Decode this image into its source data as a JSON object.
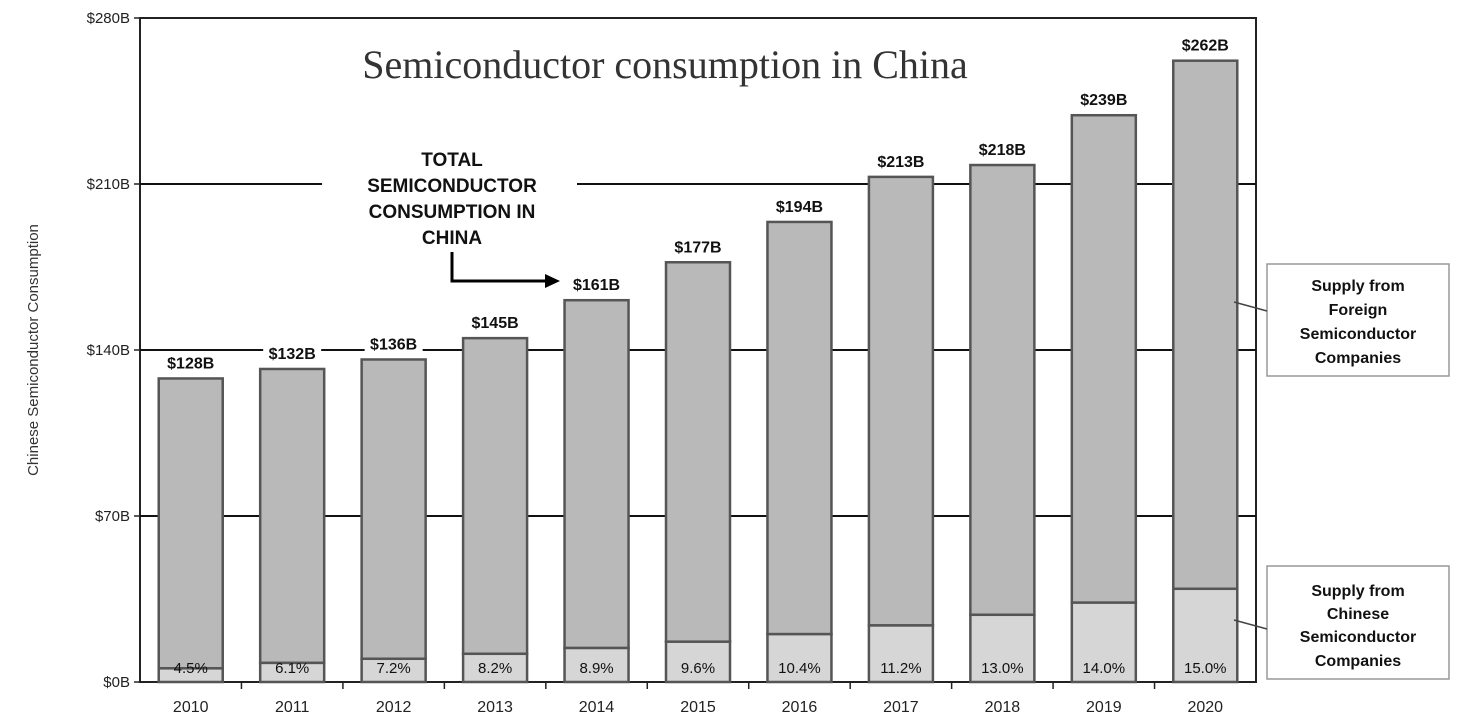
{
  "chart_data": {
    "type": "bar",
    "stacked": true,
    "title": "Semiconductor consumption in China",
    "ylabel": "Chinese Semiconductor Consumption",
    "xlabel": "",
    "ylim": [
      0,
      280
    ],
    "yticks": [
      0,
      70,
      140,
      210,
      280
    ],
    "ytick_labels": [
      "$0B",
      "$70B",
      "$140B",
      "$210B",
      "$280B"
    ],
    "grid": true,
    "categories": [
      "2010",
      "2011",
      "2012",
      "2013",
      "2014",
      "2015",
      "2016",
      "2017",
      "2018",
      "2019",
      "2020"
    ],
    "totals": [
      128,
      132,
      136,
      145,
      161,
      177,
      194,
      213,
      218,
      239,
      262
    ],
    "total_labels": [
      "$128B",
      "$132B",
      "$136B",
      "$145B",
      "$161B",
      "$177B",
      "$194B",
      "$213B",
      "$218B",
      "$239B",
      "$262B"
    ],
    "chinese_share_percent": [
      4.5,
      6.1,
      7.2,
      8.2,
      8.9,
      9.6,
      10.4,
      11.2,
      13.0,
      14.0,
      15.0
    ],
    "share_labels": [
      "4.5%",
      "6.1%",
      "7.2%",
      "8.2%",
      "8.9%",
      "9.6%",
      "10.4%",
      "11.2%",
      "13.0%",
      "14.0%",
      "15.0%"
    ],
    "annotation": [
      "TOTAL",
      "SEMICONDUCTOR",
      "CONSUMPTION IN",
      "CHINA"
    ],
    "legend": {
      "placement": "right",
      "foreign": [
        "Supply from",
        "Foreign",
        "Semiconductor",
        "Companies"
      ],
      "chinese": [
        "Supply from",
        "Chinese",
        "Semiconductor",
        "Companies"
      ]
    },
    "colors": {
      "foreign": "#b9b9b9",
      "chinese": "#d6d6d6",
      "bar_edge": "#555555",
      "grid": "#111111"
    }
  }
}
